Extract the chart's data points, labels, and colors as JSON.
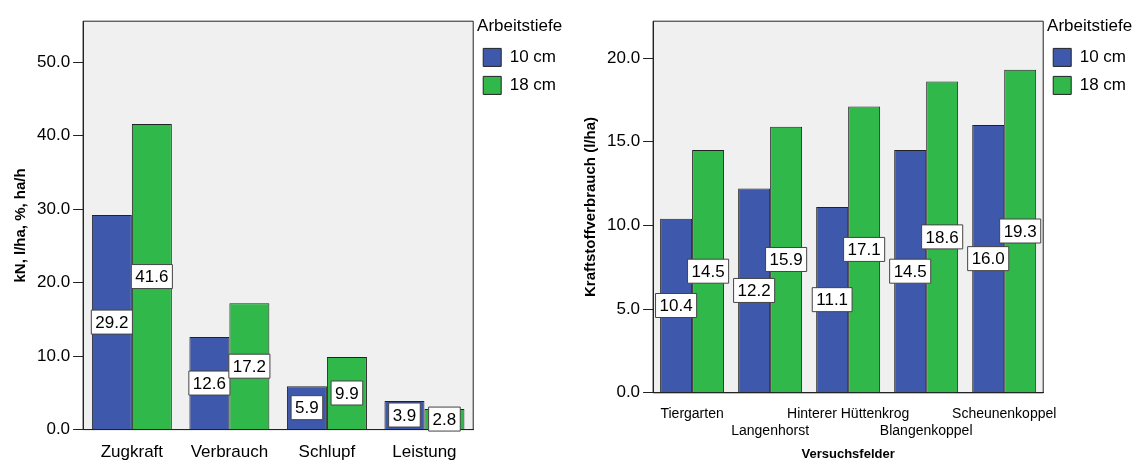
{
  "chart_data": [
    {
      "type": "bar",
      "ylabel": "kN, l/ha, %, ha/h",
      "legend_title": "Arbeitstiefe",
      "categories": [
        "Zugkraft",
        "Verbrauch",
        "Schlupf",
        "Leistung"
      ],
      "series": [
        {
          "name": "10 cm",
          "color": "#3e58ac",
          "values": [
            29.2,
            12.6,
            5.9,
            3.9
          ],
          "value_labels": [
            "29.2",
            "12.6",
            "5.9",
            "3.9"
          ]
        },
        {
          "name": "18 cm",
          "color": "#31b84a",
          "values": [
            41.6,
            17.2,
            9.9,
            2.8
          ],
          "value_labels": [
            "41.6",
            "17.2",
            "9.9",
            "2.8"
          ]
        }
      ],
      "ylim": [
        0,
        55.6
      ],
      "yticks": [
        {
          "value": 0,
          "label": "0.0"
        },
        {
          "value": 10,
          "label": "10.0"
        },
        {
          "value": 20,
          "label": "20.0"
        },
        {
          "value": 30,
          "label": "30.0"
        },
        {
          "value": 40,
          "label": "40.0"
        },
        {
          "value": 50,
          "label": "50.0"
        }
      ],
      "grid": false,
      "legend": "top right"
    },
    {
      "type": "bar",
      "xlabel": "Versuchsfelder",
      "ylabel": "Kraftstoffverbrauch (l/ha)",
      "legend_title": "Arbeitstiefe",
      "categories": [
        "Tiergarten",
        "Langenhorst",
        "Hinterer Hüttenkrog",
        "Blangenkoppel",
        "Scheunenkoppel"
      ],
      "series": [
        {
          "name": "10 cm",
          "color": "#3e58ac",
          "values": [
            10.4,
            12.2,
            11.1,
            14.5,
            16.0
          ],
          "value_labels": [
            "10.4",
            "12.2",
            "11.1",
            "14.5",
            "16.0"
          ]
        },
        {
          "name": "18 cm",
          "color": "#31b84a",
          "values": [
            14.5,
            15.9,
            17.1,
            18.6,
            19.3
          ],
          "value_labels": [
            "14.5",
            "15.9",
            "17.1",
            "18.6",
            "19.3"
          ]
        }
      ],
      "ylim": [
        0,
        22.2
      ],
      "yticks": [
        {
          "value": 0,
          "label": "0.0"
        },
        {
          "value": 5,
          "label": "5.0"
        },
        {
          "value": 10,
          "label": "10.0"
        },
        {
          "value": 15,
          "label": "15.0"
        },
        {
          "value": 20,
          "label": "20.0"
        }
      ],
      "grid": false,
      "legend": "top right"
    }
  ]
}
